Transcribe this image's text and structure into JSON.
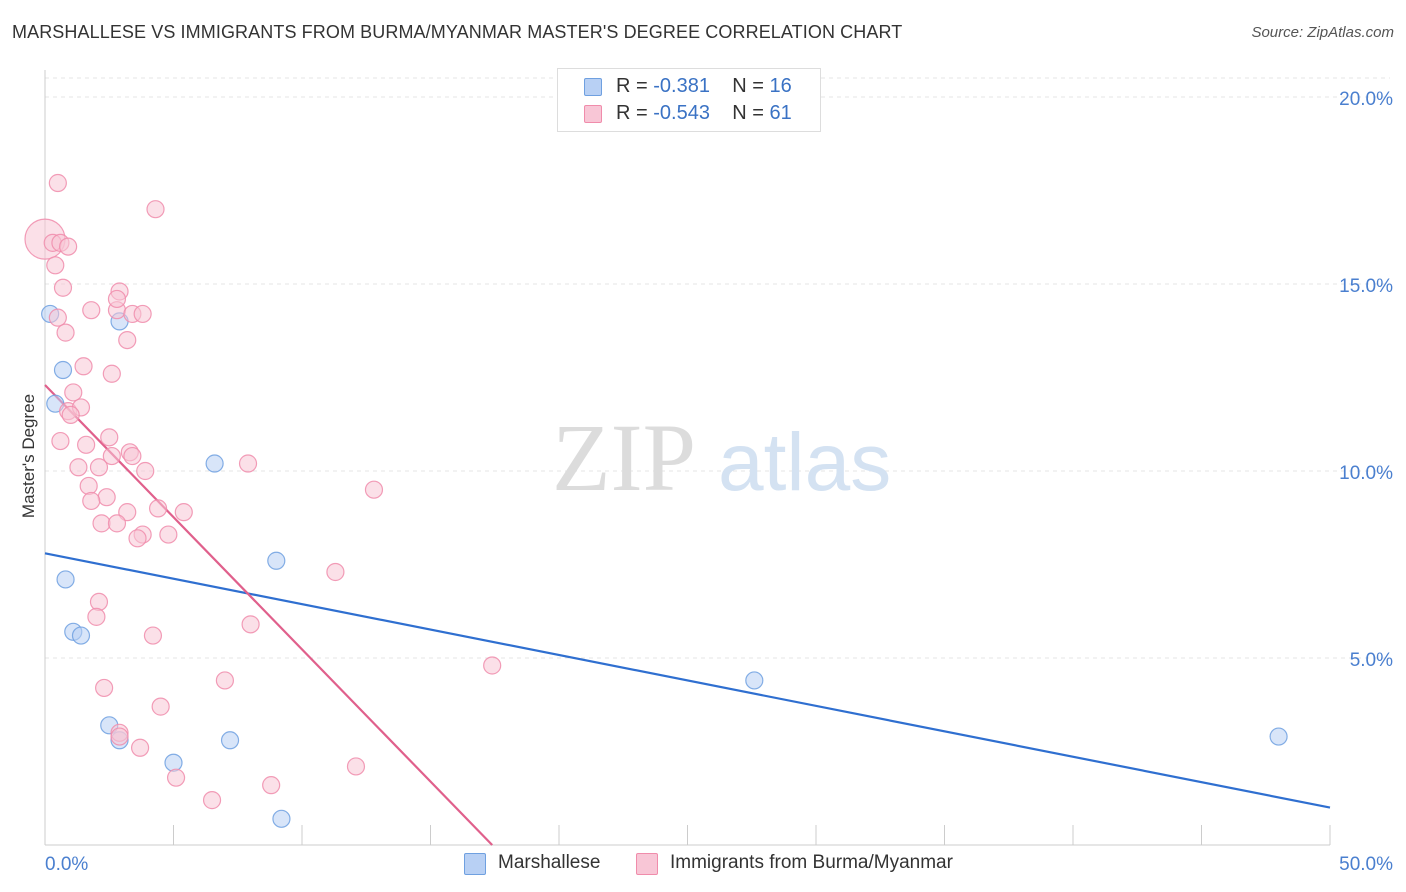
{
  "chart_data": {
    "type": "scatter",
    "title": "MARSHALLESE VS IMMIGRANTS FROM BURMA/MYANMAR MASTER'S DEGREE CORRELATION CHART",
    "source": "Source: ZipAtlas.com",
    "ylabel": "Master's Degree",
    "xlabel": "",
    "xlim": [
      0,
      50
    ],
    "ylim": [
      0,
      20.8
    ],
    "x_tick_labels": [
      "0.0%",
      "50.0%"
    ],
    "y_ticks": [
      5,
      10,
      15,
      20
    ],
    "y_tick_labels": [
      "5.0%",
      "10.0%",
      "15.0%",
      "20.0%"
    ],
    "grid": true,
    "watermark": {
      "zip": "ZIP",
      "atlas": "atlas"
    },
    "legend": {
      "position": "top-center",
      "r_label": "R =",
      "n_label": "N ="
    },
    "series": [
      {
        "name": "Marshallese",
        "r": "-0.381",
        "n": "16",
        "color": "#6fa0e0",
        "fill": "#b8d0f4",
        "line_color": "#2f6fd0",
        "trend": [
          [
            0,
            7.8
          ],
          [
            50,
            1.0
          ]
        ],
        "points": [
          [
            0.2,
            14.2
          ],
          [
            2.9,
            14.0
          ],
          [
            0.7,
            12.7
          ],
          [
            0.4,
            11.8
          ],
          [
            6.6,
            10.2
          ],
          [
            0.8,
            7.1
          ],
          [
            9.0,
            7.6
          ],
          [
            1.1,
            5.7
          ],
          [
            1.4,
            5.6
          ],
          [
            27.6,
            4.4
          ],
          [
            2.5,
            3.2
          ],
          [
            2.9,
            2.8
          ],
          [
            7.2,
            2.8
          ],
          [
            5.0,
            2.2
          ],
          [
            9.2,
            0.7
          ],
          [
            48.0,
            2.9
          ]
        ]
      },
      {
        "name": "Immigrants from Burma/Myanmar",
        "r": "-0.543",
        "n": "61",
        "color": "#f08cab",
        "fill": "#f8c6d6",
        "line_color": "#e0608c",
        "trend": [
          [
            0,
            12.3
          ],
          [
            17.4,
            0
          ]
        ],
        "points": [
          [
            0.0,
            16.2
          ],
          [
            0.3,
            16.1
          ],
          [
            0.6,
            16.1
          ],
          [
            0.9,
            16.0
          ],
          [
            0.4,
            15.5
          ],
          [
            0.5,
            17.7
          ],
          [
            4.3,
            17.0
          ],
          [
            0.7,
            14.9
          ],
          [
            1.8,
            14.3
          ],
          [
            2.9,
            14.8
          ],
          [
            2.8,
            14.3
          ],
          [
            0.5,
            14.1
          ],
          [
            2.8,
            14.6
          ],
          [
            3.4,
            14.2
          ],
          [
            3.8,
            14.2
          ],
          [
            0.8,
            13.7
          ],
          [
            3.2,
            13.5
          ],
          [
            1.5,
            12.8
          ],
          [
            2.6,
            12.6
          ],
          [
            1.1,
            12.1
          ],
          [
            0.9,
            11.6
          ],
          [
            1.4,
            11.7
          ],
          [
            1.0,
            11.5
          ],
          [
            0.6,
            10.8
          ],
          [
            1.6,
            10.7
          ],
          [
            2.5,
            10.9
          ],
          [
            3.3,
            10.5
          ],
          [
            3.4,
            10.4
          ],
          [
            2.6,
            10.4
          ],
          [
            2.1,
            10.1
          ],
          [
            1.3,
            10.1
          ],
          [
            7.9,
            10.2
          ],
          [
            3.9,
            10.0
          ],
          [
            12.8,
            9.5
          ],
          [
            1.7,
            9.6
          ],
          [
            2.4,
            9.3
          ],
          [
            1.8,
            9.2
          ],
          [
            3.2,
            8.9
          ],
          [
            4.4,
            9.0
          ],
          [
            5.4,
            8.9
          ],
          [
            2.2,
            8.6
          ],
          [
            2.8,
            8.6
          ],
          [
            3.8,
            8.3
          ],
          [
            4.8,
            8.3
          ],
          [
            3.6,
            8.2
          ],
          [
            11.3,
            7.3
          ],
          [
            2.1,
            6.5
          ],
          [
            2.0,
            6.1
          ],
          [
            8.0,
            5.9
          ],
          [
            4.2,
            5.6
          ],
          [
            17.4,
            4.8
          ],
          [
            7.0,
            4.4
          ],
          [
            2.3,
            4.2
          ],
          [
            4.5,
            3.7
          ],
          [
            2.9,
            3.0
          ],
          [
            3.7,
            2.6
          ],
          [
            12.1,
            2.1
          ],
          [
            5.1,
            1.8
          ],
          [
            8.8,
            1.6
          ],
          [
            6.5,
            1.2
          ],
          [
            2.9,
            2.9
          ]
        ]
      }
    ]
  }
}
